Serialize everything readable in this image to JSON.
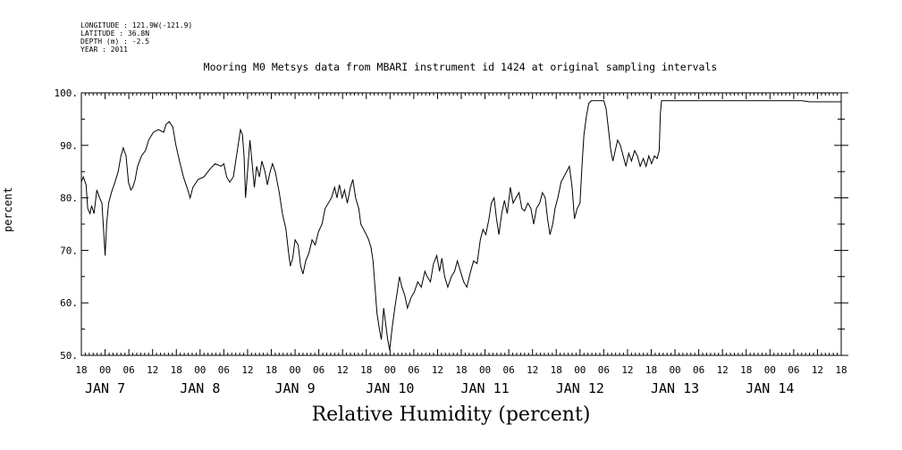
{
  "header": {
    "longitude": "LONGITUDE : 121.9W(-121.9)",
    "latitude": "LATITUDE : 36.8N",
    "depth": "DEPTH (m) : -2.5",
    "year": "YEAR : 2011"
  },
  "chart_data": {
    "type": "line",
    "title": "Mooring M0 Metsys data from MBARI instrument id 1424 at original sampling intervals",
    "xlabel": "Relative Humidity (percent)",
    "ylabel": "percent",
    "ylim": [
      50,
      100
    ],
    "yticks": [
      50,
      60,
      70,
      80,
      90,
      100
    ],
    "ytick_labels": [
      "50.",
      "60.",
      "70.",
      "80.",
      "90.",
      "100."
    ],
    "xlim_hours": [
      -6,
      186
    ],
    "x_unit": "hours since 2011-01-07 00:00",
    "hour_ticks": [
      {
        "h": -6,
        "label": "18"
      },
      {
        "h": 0,
        "label": "00"
      },
      {
        "h": 6,
        "label": "06"
      },
      {
        "h": 12,
        "label": "12"
      },
      {
        "h": 18,
        "label": "18"
      },
      {
        "h": 24,
        "label": "00"
      },
      {
        "h": 30,
        "label": "06"
      },
      {
        "h": 36,
        "label": "12"
      },
      {
        "h": 42,
        "label": "18"
      },
      {
        "h": 48,
        "label": "00"
      },
      {
        "h": 54,
        "label": "06"
      },
      {
        "h": 60,
        "label": "12"
      },
      {
        "h": 66,
        "label": "18"
      },
      {
        "h": 72,
        "label": "00"
      },
      {
        "h": 78,
        "label": "06"
      },
      {
        "h": 84,
        "label": "12"
      },
      {
        "h": 90,
        "label": "18"
      },
      {
        "h": 96,
        "label": "00"
      },
      {
        "h": 102,
        "label": "06"
      },
      {
        "h": 108,
        "label": "12"
      },
      {
        "h": 114,
        "label": "18"
      },
      {
        "h": 120,
        "label": "00"
      },
      {
        "h": 126,
        "label": "06"
      },
      {
        "h": 132,
        "label": "12"
      },
      {
        "h": 138,
        "label": "18"
      },
      {
        "h": 144,
        "label": "00"
      },
      {
        "h": 150,
        "label": "06"
      },
      {
        "h": 156,
        "label": "12"
      },
      {
        "h": 162,
        "label": "18"
      },
      {
        "h": 168,
        "label": "00"
      },
      {
        "h": 174,
        "label": "06"
      },
      {
        "h": 180,
        "label": "12"
      },
      {
        "h": 186,
        "label": "18"
      }
    ],
    "date_labels": [
      {
        "h": 0,
        "label": "JAN  7"
      },
      {
        "h": 24,
        "label": "JAN  8"
      },
      {
        "h": 48,
        "label": "JAN  9"
      },
      {
        "h": 72,
        "label": "JAN 10"
      },
      {
        "h": 96,
        "label": "JAN 11"
      },
      {
        "h": 120,
        "label": "JAN 12"
      },
      {
        "h": 144,
        "label": "JAN 13"
      },
      {
        "h": 168,
        "label": "JAN 14"
      }
    ],
    "series": [
      {
        "color": "#000000",
        "points": [
          [
            -6,
            83
          ],
          [
            -5.5,
            84
          ],
          [
            -4.8,
            82.5
          ],
          [
            -4.4,
            78
          ],
          [
            -3.8,
            77
          ],
          [
            -3.4,
            78.5
          ],
          [
            -2.8,
            77
          ],
          [
            -2.1,
            81.5
          ],
          [
            -1.4,
            80
          ],
          [
            -0.8,
            79
          ],
          [
            -0.3,
            73
          ],
          [
            0,
            69
          ],
          [
            0.4,
            75
          ],
          [
            0.9,
            79
          ],
          [
            1.6,
            81
          ],
          [
            2.5,
            83
          ],
          [
            3.3,
            85
          ],
          [
            4.0,
            88
          ],
          [
            4.6,
            89.5
          ],
          [
            5.3,
            88
          ],
          [
            5.9,
            83
          ],
          [
            6.5,
            81.5
          ],
          [
            7.0,
            82
          ],
          [
            7.6,
            83.5
          ],
          [
            8.2,
            86
          ],
          [
            9.2,
            88
          ],
          [
            10.2,
            89
          ],
          [
            11.0,
            91
          ],
          [
            12.2,
            92.5
          ],
          [
            13.5,
            93
          ],
          [
            14.8,
            92.5
          ],
          [
            15.4,
            94
          ],
          [
            16.2,
            94.5
          ],
          [
            17.1,
            93.5
          ],
          [
            17.9,
            90
          ],
          [
            18.8,
            87
          ],
          [
            19.8,
            84
          ],
          [
            20.9,
            81.5
          ],
          [
            21.5,
            80
          ],
          [
            22.2,
            82
          ],
          [
            23.5,
            83.5
          ],
          [
            25.0,
            84
          ],
          [
            26.5,
            85.5
          ],
          [
            27.8,
            86.5
          ],
          [
            29.3,
            86
          ],
          [
            30.0,
            86.5
          ],
          [
            30.7,
            84
          ],
          [
            31.5,
            83
          ],
          [
            32.4,
            84
          ],
          [
            33.0,
            87
          ],
          [
            33.7,
            90.5
          ],
          [
            34.2,
            93
          ],
          [
            34.7,
            92
          ],
          [
            35.1,
            88
          ],
          [
            35.5,
            80
          ],
          [
            36.0,
            85
          ],
          [
            36.6,
            91
          ],
          [
            37.1,
            87
          ],
          [
            37.7,
            82
          ],
          [
            38.3,
            86
          ],
          [
            39.0,
            84
          ],
          [
            39.6,
            87
          ],
          [
            40.4,
            85
          ],
          [
            41.0,
            82.5
          ],
          [
            41.7,
            85
          ],
          [
            42.3,
            86.5
          ],
          [
            43.0,
            85
          ],
          [
            44.0,
            81
          ],
          [
            44.8,
            77
          ],
          [
            45.7,
            74
          ],
          [
            46.3,
            70
          ],
          [
            46.8,
            67
          ],
          [
            47.4,
            68.5
          ],
          [
            48.0,
            72
          ],
          [
            48.8,
            71
          ],
          [
            49.4,
            67
          ],
          [
            50.0,
            65.5
          ],
          [
            50.7,
            68
          ],
          [
            51.5,
            69.5
          ],
          [
            52.3,
            72
          ],
          [
            53.1,
            71
          ],
          [
            53.9,
            73.5
          ],
          [
            54.8,
            75
          ],
          [
            55.6,
            78
          ],
          [
            56.4,
            79
          ],
          [
            57.2,
            80
          ],
          [
            58.0,
            82
          ],
          [
            58.6,
            80
          ],
          [
            59.2,
            82.5
          ],
          [
            59.9,
            80
          ],
          [
            60.5,
            81.5
          ],
          [
            61.2,
            79
          ],
          [
            62.0,
            82
          ],
          [
            62.6,
            83.5
          ],
          [
            63.3,
            80
          ],
          [
            64.1,
            78
          ],
          [
            64.6,
            75
          ],
          [
            65.3,
            74
          ],
          [
            66.0,
            73
          ],
          [
            66.6,
            72
          ],
          [
            67.2,
            70.5
          ],
          [
            67.7,
            68
          ],
          [
            68.2,
            63
          ],
          [
            68.7,
            58
          ],
          [
            69.3,
            55
          ],
          [
            69.8,
            53
          ],
          [
            70.4,
            59
          ],
          [
            70.9,
            56
          ],
          [
            71.4,
            53
          ],
          [
            71.9,
            51
          ],
          [
            72.5,
            55
          ],
          [
            73.2,
            59
          ],
          [
            73.8,
            62
          ],
          [
            74.4,
            65
          ],
          [
            75.0,
            63
          ],
          [
            75.7,
            61.5
          ],
          [
            76.4,
            59
          ],
          [
            77.3,
            61
          ],
          [
            78.1,
            62
          ],
          [
            79.0,
            64
          ],
          [
            79.9,
            63
          ],
          [
            80.8,
            66
          ],
          [
            81.4,
            65
          ],
          [
            82.2,
            64
          ],
          [
            83.0,
            67.5
          ],
          [
            83.8,
            69
          ],
          [
            84.5,
            66
          ],
          [
            85.1,
            68.5
          ],
          [
            85.8,
            65
          ],
          [
            86.6,
            63
          ],
          [
            87.5,
            65
          ],
          [
            88.3,
            66
          ],
          [
            89.0,
            68
          ],
          [
            89.8,
            66
          ],
          [
            90.6,
            64
          ],
          [
            91.4,
            63
          ],
          [
            92.2,
            65.5
          ],
          [
            93.1,
            68
          ],
          [
            94.0,
            67.5
          ],
          [
            94.8,
            72
          ],
          [
            95.5,
            74
          ],
          [
            96.2,
            73
          ],
          [
            97.0,
            76
          ],
          [
            97.6,
            79
          ],
          [
            98.3,
            80
          ],
          [
            98.9,
            76
          ],
          [
            99.5,
            73
          ],
          [
            100.2,
            77
          ],
          [
            100.9,
            79.5
          ],
          [
            101.6,
            77
          ],
          [
            102.4,
            82
          ],
          [
            103.1,
            79
          ],
          [
            103.8,
            80
          ],
          [
            104.6,
            81
          ],
          [
            105.3,
            78
          ],
          [
            106.0,
            77.5
          ],
          [
            106.8,
            79
          ],
          [
            107.6,
            78
          ],
          [
            108.3,
            75
          ],
          [
            109.0,
            78
          ],
          [
            109.8,
            79
          ],
          [
            110.5,
            81
          ],
          [
            111.2,
            80
          ],
          [
            111.8,
            76
          ],
          [
            112.4,
            73
          ],
          [
            113.1,
            75
          ],
          [
            113.7,
            78
          ],
          [
            114.4,
            80
          ],
          [
            115.2,
            83
          ],
          [
            115.9,
            84
          ],
          [
            116.6,
            85
          ],
          [
            117.3,
            86
          ],
          [
            118.0,
            82
          ],
          [
            118.6,
            76
          ],
          [
            119.3,
            78
          ],
          [
            120.0,
            79
          ],
          [
            120.5,
            86
          ],
          [
            121.0,
            92
          ],
          [
            121.6,
            95.5
          ],
          [
            122.2,
            98
          ],
          [
            122.9,
            98.5
          ],
          [
            124.5,
            98.5
          ],
          [
            126.0,
            98.5
          ],
          [
            126.6,
            97
          ],
          [
            127.2,
            93
          ],
          [
            127.8,
            89
          ],
          [
            128.3,
            87
          ],
          [
            128.9,
            89
          ],
          [
            129.5,
            91
          ],
          [
            130.2,
            90
          ],
          [
            130.9,
            88
          ],
          [
            131.6,
            86
          ],
          [
            132.3,
            88.5
          ],
          [
            133.0,
            87
          ],
          [
            133.8,
            89
          ],
          [
            134.5,
            88
          ],
          [
            135.2,
            86
          ],
          [
            136.0,
            87.5
          ],
          [
            136.7,
            86
          ],
          [
            137.4,
            88
          ],
          [
            138.1,
            86.5
          ],
          [
            138.8,
            88
          ],
          [
            139.5,
            87.5
          ],
          [
            140.0,
            89
          ],
          [
            140.3,
            96
          ],
          [
            140.6,
            98.5
          ],
          [
            150,
            98.5
          ],
          [
            160,
            98.5
          ],
          [
            174,
            98.5
          ],
          [
            176,
            98.5
          ],
          [
            178,
            98.3
          ],
          [
            186,
            98.3
          ]
        ]
      }
    ]
  }
}
